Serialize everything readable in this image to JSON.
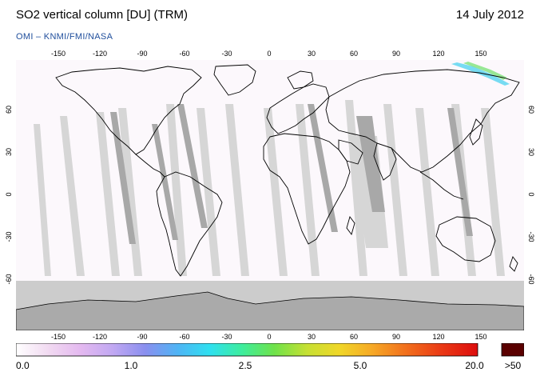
{
  "header": {
    "title": "SO2 vertical column [DU] (TRM)",
    "date": "14 July 2012",
    "subtitle": "OMI  –  KNMI/FMI/NASA"
  },
  "map": {
    "projection": "equirectangular",
    "lon_ticks": [
      "-150",
      "-120",
      "-90",
      "-60",
      "-30",
      "0",
      "30",
      "60",
      "90",
      "120",
      "150"
    ],
    "lat_ticks": [
      "60",
      "30",
      "0",
      "-30",
      "-60"
    ],
    "colors": {
      "background": "#fcf8fc",
      "gap_light": "#d6d6d6",
      "gap_dark": "#a8a8a8",
      "polar_fill": "#cccccc",
      "antarctica_fill": "#aaaaaa",
      "coast": "#000000"
    }
  },
  "colorbar": {
    "labels": [
      "0.0",
      "1.0",
      "2.5",
      "5.0",
      "20.0"
    ],
    "overflow_label": ">50",
    "overflow_color": "#5a0000",
    "stops": [
      "#ffffff",
      "#f1daf1",
      "#e4b9f0",
      "#c1a8f2",
      "#8a8fef",
      "#4fb4f5",
      "#2fe0f0",
      "#3ded9c",
      "#6fe24a",
      "#c6e033",
      "#f0d728",
      "#f6aa26",
      "#f2731d",
      "#ea3a15",
      "#dd0d0d"
    ]
  }
}
